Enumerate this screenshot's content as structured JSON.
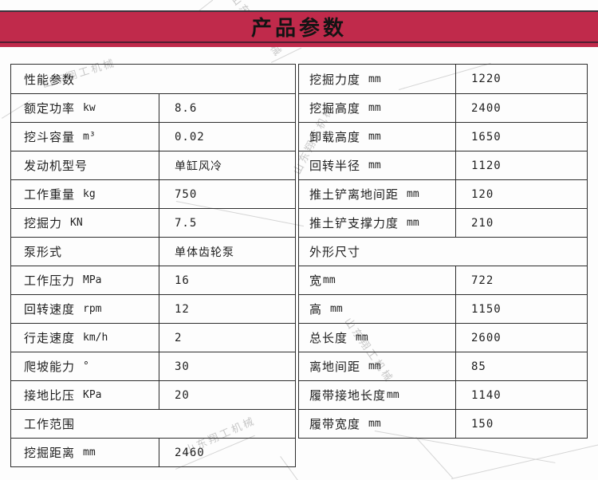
{
  "banner": {
    "title": "产品参数"
  },
  "watermark": {
    "text": "山东翔工机械"
  },
  "colors": {
    "banner_bg": "#c02a4b",
    "banner_top_line": "#3a333c",
    "banner_bottom_line": "#511f32",
    "table_border": "#2d2d2d",
    "text": "#1f1f1f",
    "watermark": "#c7c7c7"
  },
  "left_table": {
    "rows": [
      {
        "type": "section",
        "label": "性能参数"
      },
      {
        "type": "data",
        "label": "额定功率",
        "unit": "kw",
        "value": "8.6"
      },
      {
        "type": "data",
        "label": "挖斗容量",
        "unit": "m³",
        "value": "0.02"
      },
      {
        "type": "data",
        "label": "发动机型号",
        "unit": "",
        "value": "单缸风冷"
      },
      {
        "type": "data",
        "label": "工作重量",
        "unit": "kg",
        "value": "750"
      },
      {
        "type": "data",
        "label": "挖掘力",
        "unit": "KN",
        "value": "7.5"
      },
      {
        "type": "data",
        "label": "泵形式",
        "unit": "",
        "value": "单体齿轮泵"
      },
      {
        "type": "data",
        "label": "工作压力",
        "unit": "MPa",
        "value": "16"
      },
      {
        "type": "data",
        "label": "回转速度",
        "unit": "rpm",
        "value": "12"
      },
      {
        "type": "data",
        "label": "行走速度",
        "unit": "km/h",
        "value": "2"
      },
      {
        "type": "data",
        "label": "爬坡能力",
        "unit": "°",
        "value": "30"
      },
      {
        "type": "data",
        "label": "接地比压",
        "unit": "KPa",
        "value": "20"
      },
      {
        "type": "section",
        "label": "工作范围"
      },
      {
        "type": "data",
        "label": "挖掘距离",
        "unit": "mm",
        "value": "2460"
      }
    ]
  },
  "right_table": {
    "rows": [
      {
        "type": "data",
        "label": "挖掘力度",
        "unit": "mm",
        "value": "1220"
      },
      {
        "type": "data",
        "label": "挖掘高度",
        "unit": "mm",
        "value": "2400"
      },
      {
        "type": "data",
        "label": "卸载高度",
        "unit": "mm",
        "value": "1650"
      },
      {
        "type": "data",
        "label": "回转半径",
        "unit": "mm",
        "value": "1120"
      },
      {
        "type": "data",
        "label": "推土铲离地间距",
        "unit": "mm",
        "value": "120"
      },
      {
        "type": "data",
        "label": "推土铲支撑力度",
        "unit": "mm",
        "value": "210"
      },
      {
        "type": "section",
        "label": "外形尺寸"
      },
      {
        "type": "data",
        "label": "宽",
        "unit": "mm",
        "value": "722",
        "tight": true
      },
      {
        "type": "data",
        "label": "高",
        "unit": "mm",
        "value": "1150"
      },
      {
        "type": "data",
        "label": "总长度",
        "unit": "mm",
        "value": "2600"
      },
      {
        "type": "data",
        "label": "离地间距",
        "unit": "mm",
        "value": "85"
      },
      {
        "type": "data",
        "label": "履带接地长度",
        "unit": "mm",
        "value": "1140",
        "tight": true
      },
      {
        "type": "data",
        "label": "履带宽度",
        "unit": "mm",
        "value": "150"
      }
    ]
  }
}
